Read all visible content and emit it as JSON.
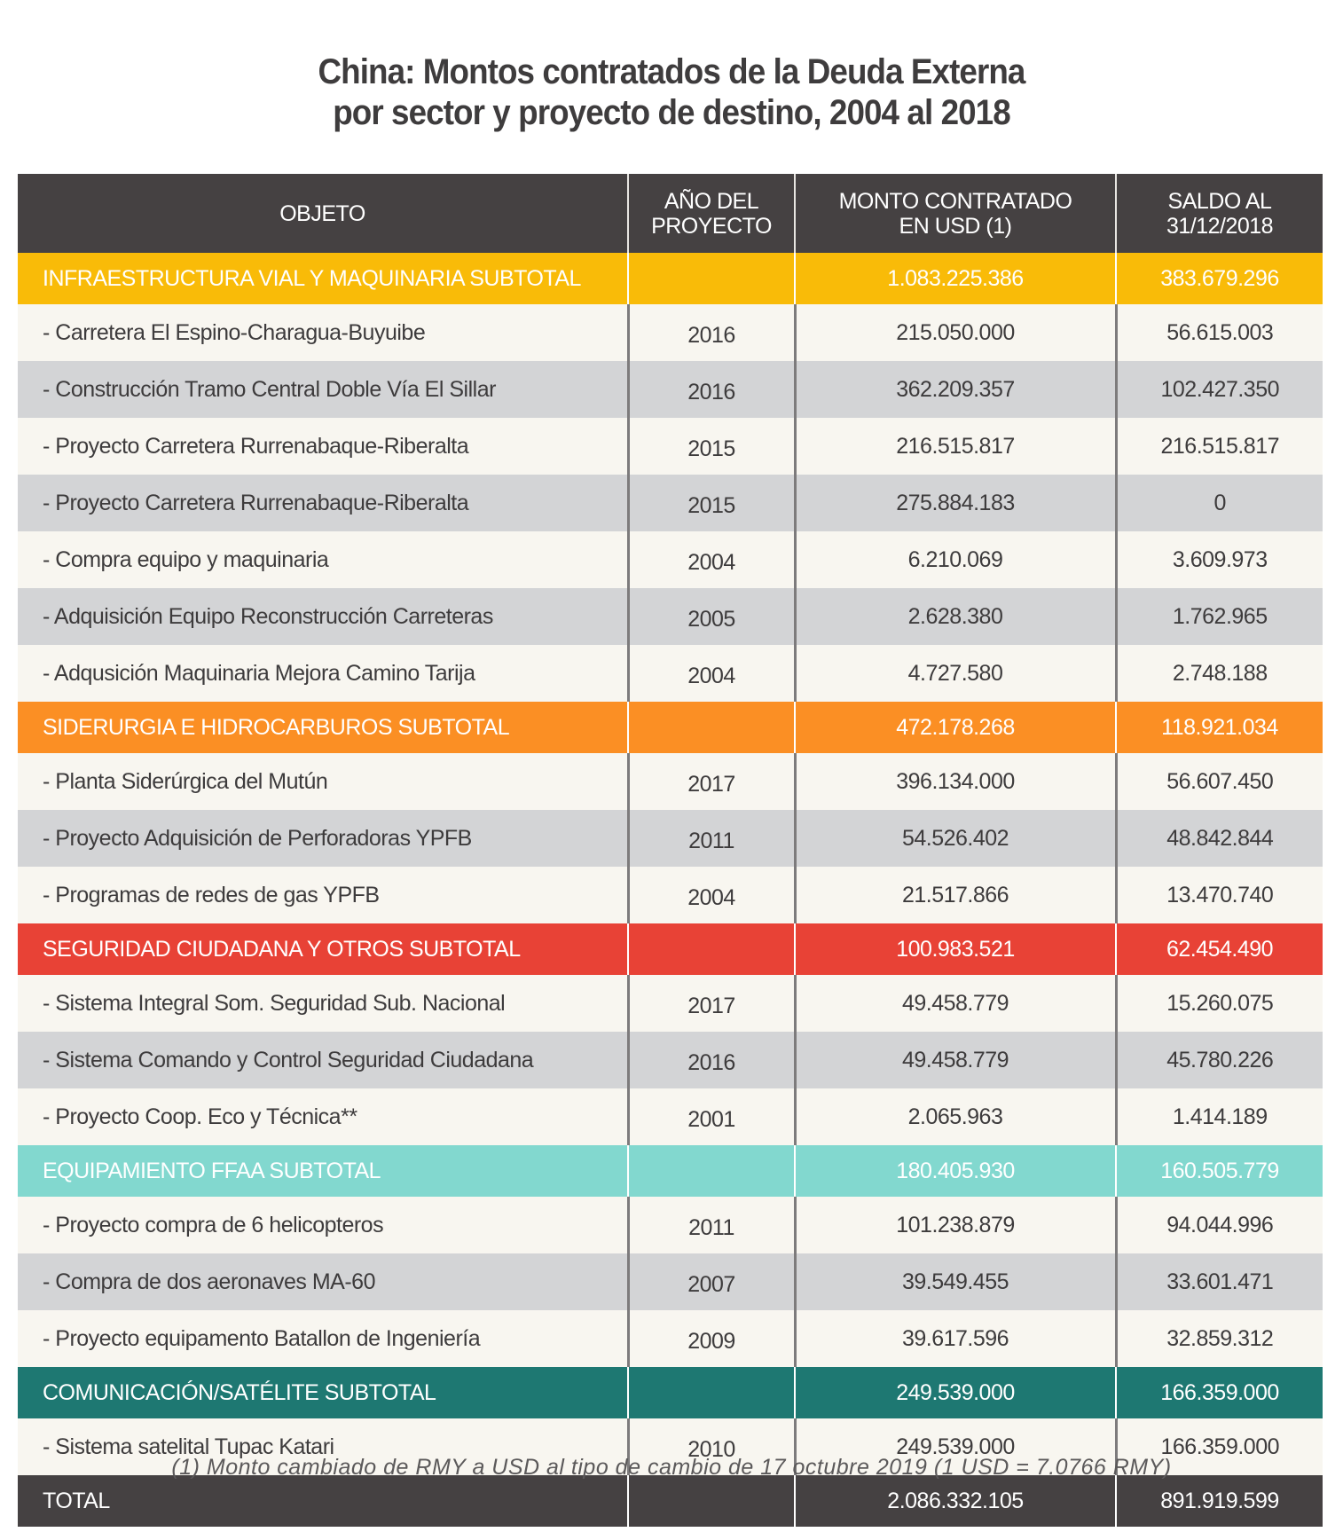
{
  "title": {
    "line1": "China: Montos contratados de la Deuda Externa",
    "line2": "por sector y proyecto de destino, 2004 al 2018"
  },
  "colors": {
    "header": "#454142",
    "infraestructura": "#f9bb08",
    "siderurgia": "#fb8f24",
    "seguridad": "#e84236",
    "equipamiento": "#82d8cf",
    "comunicacion": "#1e7872",
    "total": "#454142",
    "row_light": "#f8f6f0",
    "row_dark": "#d3d4d6"
  },
  "table": {
    "headers": [
      "OBJETO",
      "AÑO DEL\nPROYECTO",
      "MONTO CONTRATADO\nEN USD (1)",
      "SALDO AL\n31/12/2018"
    ],
    "sections": [
      {
        "name": "INFRAESTRUCTURA VIAL Y MAQUINARIA SUBTOTAL",
        "color_key": "infraestructura",
        "monto": "1.083.225.386",
        "saldo": "383.679.296",
        "rows": [
          {
            "objeto": "- Carretera El Espino-Charagua-Buyuibe",
            "anio": "2016",
            "monto": "215.050.000",
            "saldo": "56.615.003"
          },
          {
            "objeto": "- Construcción Tramo Central Doble Vía El Sillar",
            "anio": "2016",
            "monto": "362.209.357",
            "saldo": "102.427.350"
          },
          {
            "objeto": "- Proyecto Carretera Rurrenabaque-Riberalta",
            "anio": "2015",
            "monto": "216.515.817",
            "saldo": "216.515.817"
          },
          {
            "objeto": "- Proyecto Carretera Rurrenabaque-Riberalta",
            "anio": "2015",
            "monto": "275.884.183",
            "saldo": "0"
          },
          {
            "objeto": "- Compra equipo y maquinaria",
            "anio": "2004",
            "monto": "6.210.069",
            "saldo": "3.609.973"
          },
          {
            "objeto": "- Adquisición Equipo Reconstrucción Carreteras",
            "anio": "2005",
            "monto": "2.628.380",
            "saldo": "1.762.965"
          },
          {
            "objeto": "- Adqusición Maquinaria Mejora Camino Tarija",
            "anio": "2004",
            "monto": "4.727.580",
            "saldo": "2.748.188"
          }
        ]
      },
      {
        "name": "SIDERURGIA E HIDROCARBUROS SUBTOTAL",
        "color_key": "siderurgia",
        "monto": "472.178.268",
        "saldo": "118.921.034",
        "rows": [
          {
            "objeto": "- Planta Siderúrgica del Mutún",
            "anio": "2017",
            "monto": "396.134.000",
            "saldo": "56.607.450"
          },
          {
            "objeto": "- Proyecto Adquisición de Perforadoras YPFB",
            "anio": "2011",
            "monto": "54.526.402",
            "saldo": "48.842.844"
          },
          {
            "objeto": "- Programas de redes de gas YPFB",
            "anio": "2004",
            "monto": "21.517.866",
            "saldo": "13.470.740"
          }
        ]
      },
      {
        "name": "SEGURIDAD CIUDADANA Y OTROS SUBTOTAL",
        "color_key": "seguridad",
        "monto": "100.983.521",
        "saldo": "62.454.490",
        "rows": [
          {
            "objeto": "- Sistema Integral Som. Seguridad Sub. Nacional",
            "anio": "2017",
            "monto": "49.458.779",
            "saldo": "15.260.075"
          },
          {
            "objeto": "- Sistema Comando y Control Seguridad Ciudadana",
            "anio": "2016",
            "monto": "49.458.779",
            "saldo": "45.780.226"
          },
          {
            "objeto": "- Proyecto Coop. Eco y Técnica**",
            "anio": "2001",
            "monto": "2.065.963",
            "saldo": "1.414.189"
          }
        ]
      },
      {
        "name": "EQUIPAMIENTO FFAA SUBTOTAL",
        "color_key": "equipamiento",
        "monto": "180.405.930",
        "saldo": "160.505.779",
        "rows": [
          {
            "objeto": "- Proyecto compra de 6 helicopteros",
            "anio": "2011",
            "monto": "101.238.879",
            "saldo": "94.044.996"
          },
          {
            "objeto": "- Compra de dos aeronaves MA-60",
            "anio": "2007",
            "monto": "39.549.455",
            "saldo": "33.601.471"
          },
          {
            "objeto": "- Proyecto equipamento Batallon de Ingeniería",
            "anio": "2009",
            "monto": "39.617.596",
            "saldo": "32.859.312"
          }
        ]
      },
      {
        "name": "COMUNICACIÓN/SATÉLITE SUBTOTAL",
        "color_key": "comunicacion",
        "monto": "249.539.000",
        "saldo": "166.359.000",
        "rows": [
          {
            "objeto": "- Sistema satelital Tupac Katari",
            "anio": "2010",
            "monto": "249.539.000",
            "saldo": "166.359.000"
          }
        ]
      }
    ],
    "total": {
      "label": "TOTAL",
      "monto": "2.086.332.105",
      "saldo": "891.919.599"
    }
  },
  "footnote": "(1) Monto cambiado de RMY a USD al tipo de cambio de 17 octubre 2019 (1 USD = 7.0766 RMY)"
}
